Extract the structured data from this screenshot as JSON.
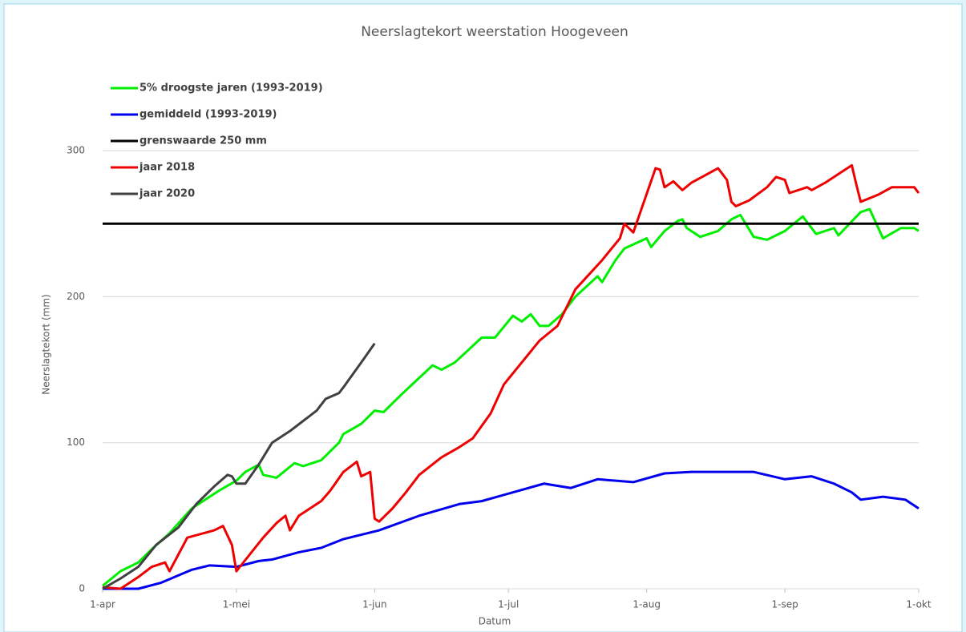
{
  "chart_data": {
    "type": "line",
    "title": "Neerslagtekort weerstation Hoogeveen",
    "x_label": "Datum",
    "y_label": "Neerslagtekort (mm)",
    "xlim": [
      0,
      183
    ],
    "xticks": [
      {
        "value": 0,
        "label": "1-apr"
      },
      {
        "value": 30,
        "label": "1-mei"
      },
      {
        "value": 61,
        "label": "1-jun"
      },
      {
        "value": 91,
        "label": "1-jul"
      },
      {
        "value": 122,
        "label": "1-aug"
      },
      {
        "value": 153,
        "label": "1-sep"
      },
      {
        "value": 183,
        "label": "1-okt"
      }
    ],
    "ylim": [
      0,
      350
    ],
    "yticks": [
      0,
      100,
      200,
      300
    ],
    "grid": true,
    "legend": "top-left",
    "series": [
      {
        "name": "5% droogste jaren (1993-2019)",
        "color": "#00ee00",
        "x": [
          0,
          4,
          8,
          11,
          15,
          20,
          26,
          30,
          32,
          35,
          36,
          39,
          43,
          45,
          49,
          53,
          54,
          58,
          61,
          63,
          67,
          74,
          76,
          79,
          85,
          88,
          92,
          94,
          96,
          98,
          100,
          103,
          106,
          111,
          112,
          115,
          117,
          122,
          123,
          126,
          129,
          130,
          131,
          134,
          138,
          141,
          143,
          146,
          149,
          153,
          157,
          160,
          164,
          165,
          170,
          172,
          175,
          179,
          182,
          183
        ],
        "values": [
          2,
          12,
          18,
          27,
          38,
          55,
          67,
          74,
          80,
          85,
          78,
          76,
          86,
          84,
          88,
          100,
          106,
          113,
          122,
          121,
          133,
          153,
          150,
          155,
          172,
          172,
          187,
          183,
          188,
          180,
          180,
          188,
          200,
          214,
          210,
          225,
          233,
          240,
          234,
          245,
          252,
          253,
          247,
          241,
          245,
          253,
          256,
          241,
          239,
          245,
          255,
          243,
          247,
          242,
          258,
          260,
          240,
          247,
          247,
          245
        ]
      },
      {
        "name": "gemiddeld (1993-2019)",
        "color": "#0000ee",
        "x": [
          0,
          8,
          13,
          20,
          24,
          30,
          35,
          38,
          44,
          49,
          54,
          62,
          71,
          80,
          85,
          92,
          99,
          105,
          111,
          119,
          126,
          132,
          139,
          146,
          153,
          159,
          164,
          168,
          170,
          175,
          180,
          183
        ],
        "values": [
          0,
          0,
          4,
          13,
          16,
          15,
          19,
          20,
          25,
          28,
          34,
          40,
          50,
          58,
          60,
          66,
          72,
          69,
          75,
          73,
          79,
          80,
          80,
          80,
          75,
          77,
          72,
          66,
          61,
          63,
          61,
          55
        ]
      },
      {
        "name": "grenswaarde 250 mm",
        "color": "#000000",
        "x": [
          0,
          183
        ],
        "values": [
          250,
          250
        ]
      },
      {
        "name": "jaar 2018",
        "color": "#ee0000",
        "x": [
          0,
          4,
          8,
          11,
          14,
          15,
          19,
          25,
          27,
          29,
          30,
          36,
          39,
          41,
          42,
          44,
          49,
          51,
          54,
          57,
          58,
          60,
          61,
          62,
          65,
          68,
          71,
          76,
          80,
          83,
          87,
          90,
          94,
          98,
          102,
          106,
          112,
          116,
          117,
          119,
          124,
          125,
          126,
          128,
          130,
          132,
          135,
          138,
          140,
          141,
          142,
          145,
          149,
          151,
          153,
          154,
          158,
          159,
          162,
          166,
          168,
          169,
          170,
          174,
          177,
          182,
          183
        ],
        "values": [
          1,
          0,
          8,
          15,
          18,
          12,
          35,
          40,
          43,
          30,
          12,
          35,
          45,
          50,
          40,
          50,
          60,
          67,
          80,
          87,
          77,
          80,
          48,
          46,
          55,
          66,
          78,
          90,
          97,
          103,
          120,
          140,
          155,
          170,
          180,
          205,
          225,
          240,
          250,
          244,
          288,
          287,
          275,
          279,
          273,
          278,
          283,
          288,
          280,
          265,
          262,
          266,
          275,
          282,
          280,
          271,
          275,
          273,
          278,
          286,
          290,
          277,
          265,
          270,
          275,
          275,
          271
        ]
      },
      {
        "name": "jaar 2020",
        "color": "#404040",
        "x": [
          0,
          4,
          8,
          12,
          17,
          21,
          25,
          28,
          29,
          30,
          32,
          35,
          38,
          42,
          45,
          48,
          50,
          53,
          54,
          58,
          61
        ],
        "values": [
          0,
          7,
          15,
          30,
          42,
          58,
          70,
          78,
          77,
          72,
          72,
          85,
          100,
          108,
          115,
          122,
          130,
          134,
          138,
          155,
          168
        ]
      }
    ]
  }
}
